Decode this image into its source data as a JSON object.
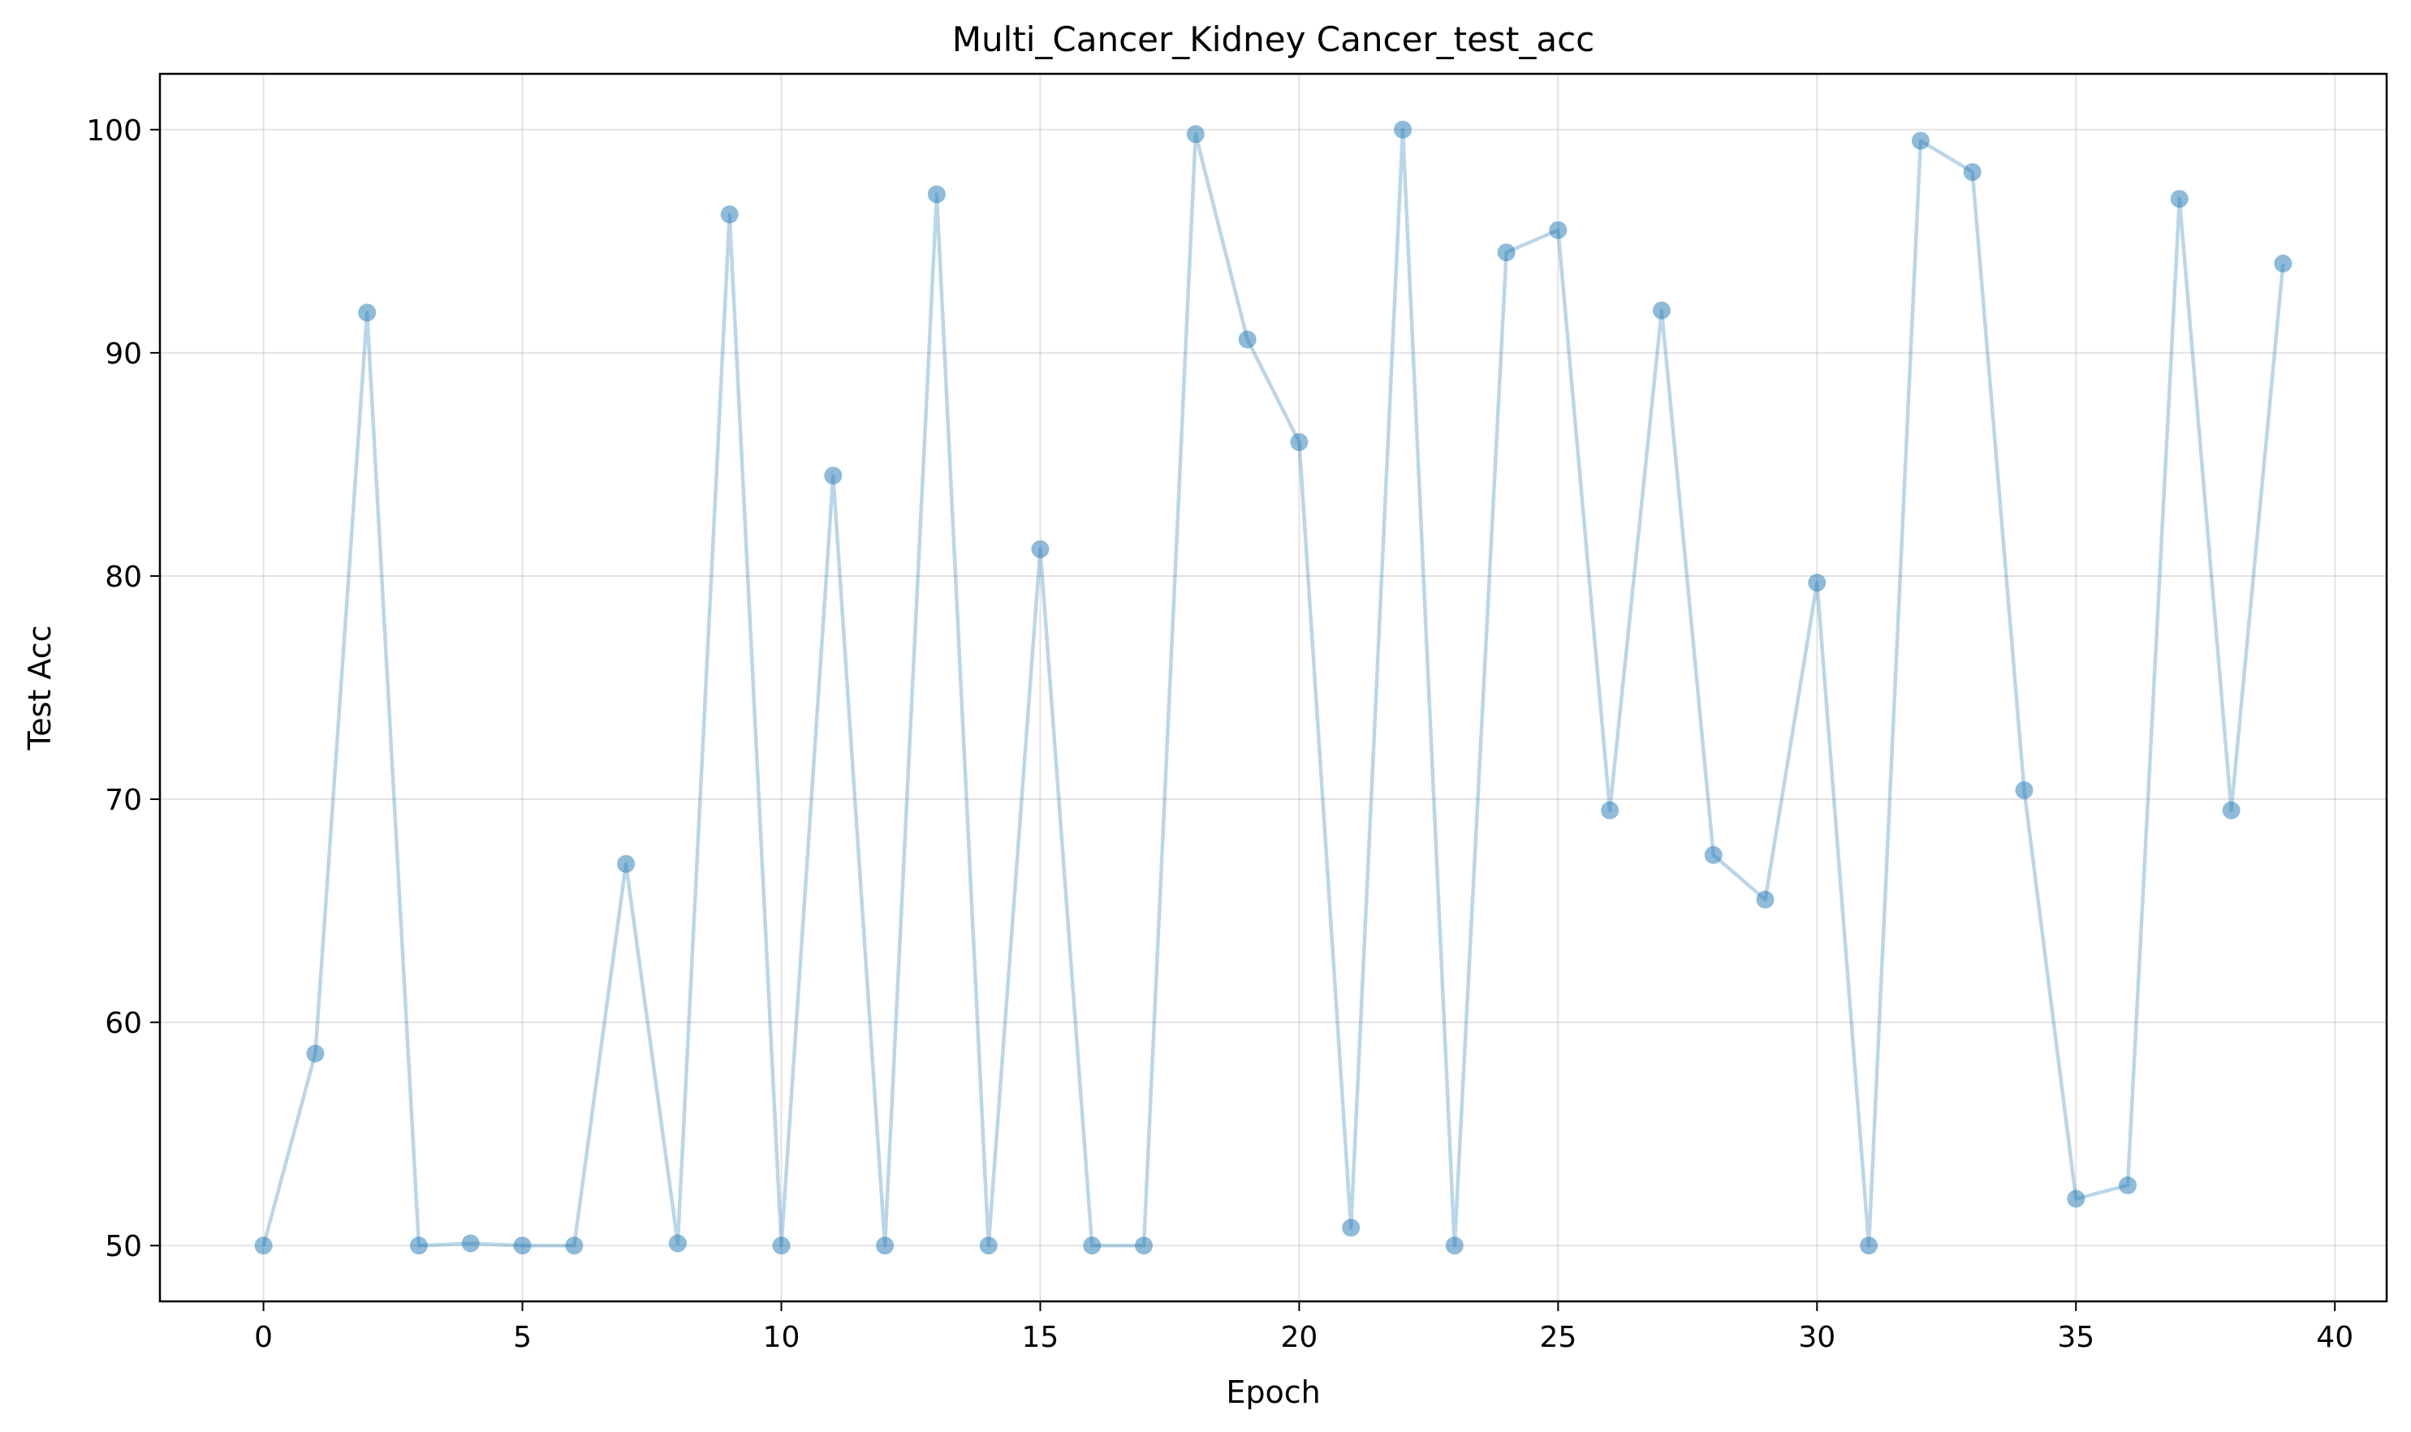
{
  "chart_data": {
    "type": "line",
    "title": "Multi_Cancer_Kidney Cancer_test_acc",
    "xlabel": "Epoch",
    "ylabel": "Test Acc",
    "xlim": [
      -2,
      41
    ],
    "ylim": [
      47.5,
      102.5
    ],
    "xticks": [
      0,
      5,
      10,
      15,
      20,
      25,
      30,
      35,
      40
    ],
    "yticks": [
      50,
      60,
      70,
      80,
      90,
      100
    ],
    "grid": true,
    "legend": "none",
    "colors": {
      "series": "#1f77b4",
      "frame": "#000000",
      "grid": "#b0b0b0"
    },
    "series": [
      {
        "x": [
          0,
          1,
          2,
          3,
          4,
          5,
          6,
          7,
          8,
          9,
          10,
          11,
          12,
          13,
          14,
          15,
          16,
          17,
          18,
          19,
          20,
          21,
          22,
          23,
          24,
          25,
          26,
          27,
          28,
          29,
          30,
          31,
          32,
          33,
          34,
          35,
          36,
          37,
          38,
          39
        ],
        "values": [
          50.0,
          58.6,
          91.8,
          50.0,
          50.1,
          50.0,
          50.0,
          67.1,
          50.1,
          96.2,
          50.0,
          84.5,
          50.0,
          97.1,
          50.0,
          81.2,
          50.0,
          50.0,
          99.8,
          90.6,
          86.0,
          50.8,
          100.0,
          50.0,
          94.5,
          95.5,
          69.5,
          91.9,
          67.5,
          65.5,
          79.7,
          50.0,
          99.5,
          98.1,
          70.4,
          52.1,
          52.7,
          96.9,
          69.5,
          94.0
        ]
      }
    ]
  }
}
